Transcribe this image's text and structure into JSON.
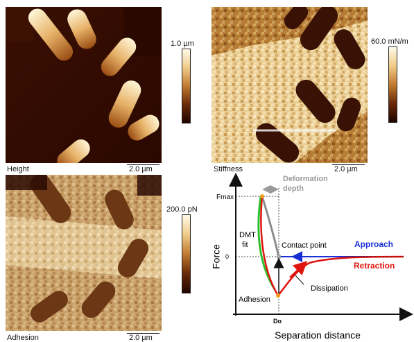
{
  "panels": {
    "height": {
      "caption": "Height",
      "scale": "2.0 µm",
      "colorbar_max": "1.0 µm"
    },
    "stiffness": {
      "caption": "Stiffness",
      "scale": "2.0 µm",
      "colorbar_max": "60.0 mN/m"
    },
    "adhesion": {
      "caption": "Adhesion",
      "scale": "2.0 µm",
      "colorbar_max": "200.0 pN"
    }
  },
  "diagram": {
    "y_axis_label": "Force",
    "x_axis_label": "Separation distance",
    "y_tick_fmax": "Fmax",
    "y_tick_zero": "0",
    "x_tick_d0": "Do",
    "deformation_label_1": "Deformation",
    "deformation_label_2": "depth",
    "dmt_label_1": "DMT",
    "dmt_label_2": "fit",
    "contact_point": "Contact point",
    "approach": "Approach",
    "retraction": "Retraction",
    "dissipation": "Dissipation",
    "adhesion": "Adhesion"
  },
  "colors": {
    "approach": "#1a2fd6",
    "retraction": "#e0140f",
    "dmt_fit": "#2fbf2f",
    "gray_curve": "#8c8c8c",
    "deformation": "#9a9a9a",
    "marker": "#f29a1a"
  }
}
